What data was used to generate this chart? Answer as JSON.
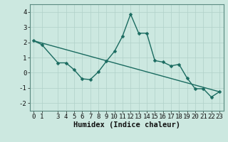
{
  "xlabel": "Humidex (Indice chaleur)",
  "background_color": "#cce8e0",
  "line_color": "#1a6b60",
  "grid_color": "#b0d0c8",
  "ylim": [
    -2.5,
    4.5
  ],
  "xlim": [
    -0.5,
    23.5
  ],
  "yticks": [
    -2,
    -1,
    0,
    1,
    2,
    3,
    4
  ],
  "xticks": [
    0,
    1,
    3,
    4,
    5,
    6,
    7,
    8,
    9,
    10,
    11,
    12,
    13,
    14,
    15,
    16,
    17,
    18,
    19,
    20,
    21,
    22,
    23
  ],
  "series1_x": [
    0,
    1,
    3,
    4,
    5,
    6,
    7,
    8,
    9,
    10,
    11,
    12,
    13,
    14,
    15,
    16,
    17,
    18,
    19,
    20,
    21,
    22,
    23
  ],
  "series1_y": [
    2.1,
    1.85,
    0.65,
    0.65,
    0.2,
    -0.4,
    -0.45,
    0.05,
    0.75,
    1.4,
    2.4,
    3.85,
    2.6,
    2.6,
    0.8,
    0.7,
    0.45,
    0.55,
    -0.35,
    -1.05,
    -1.05,
    -1.6,
    -1.25
  ],
  "series2_x": [
    0,
    23
  ],
  "series2_y": [
    2.1,
    -1.25
  ],
  "marker_size": 2.5,
  "linewidth": 1.0,
  "tick_fontsize": 6.5,
  "xlabel_fontsize": 7.5
}
